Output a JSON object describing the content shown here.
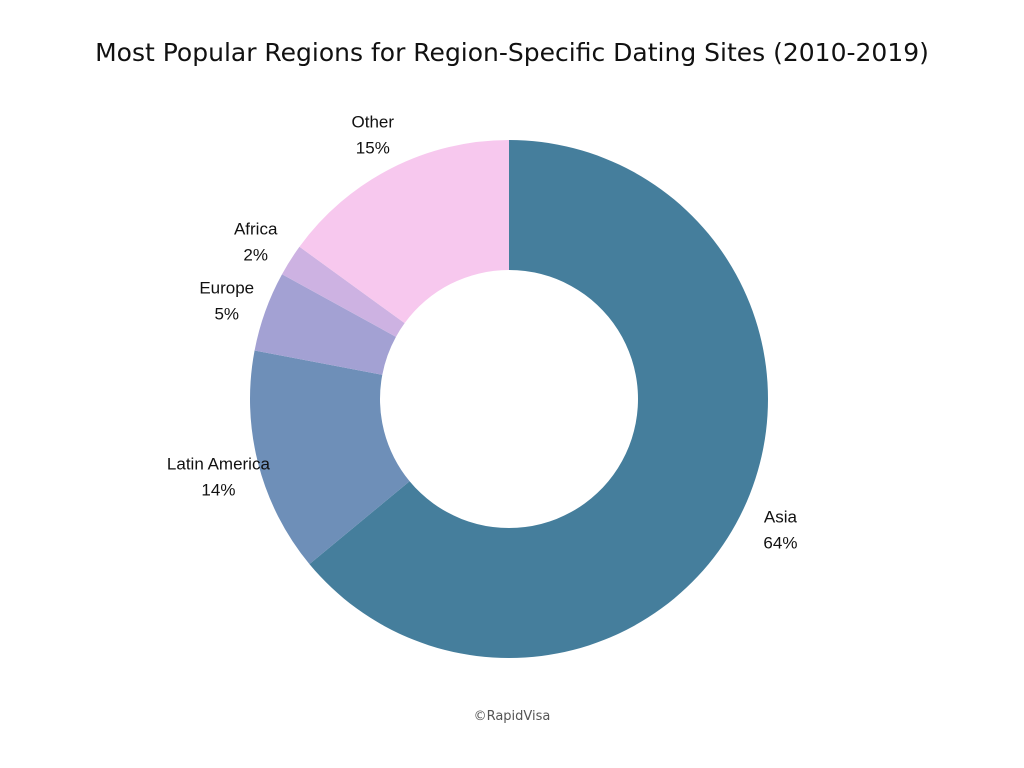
{
  "chart_data": {
    "type": "pie",
    "title": "Most Popular Regions for Region-Specific Dating Sites (2010-2019)",
    "donut": true,
    "slices": [
      {
        "label": "Asia",
        "value": 64,
        "display": "64%",
        "color": "#457e9c"
      },
      {
        "label": "Latin America",
        "value": 14,
        "display": "14%",
        "color": "#6e8fb8"
      },
      {
        "label": "Europe",
        "value": 5,
        "display": "5%",
        "color": "#a3a1d3"
      },
      {
        "label": "Africa",
        "value": 2,
        "display": "2%",
        "color": "#cdb2e2"
      },
      {
        "label": "Other",
        "value": 15,
        "display": "15%",
        "color": "#f7c8ee"
      }
    ],
    "start_at": "12 o'clock",
    "direction": "clockwise"
  },
  "credit": "©RapidVisa"
}
